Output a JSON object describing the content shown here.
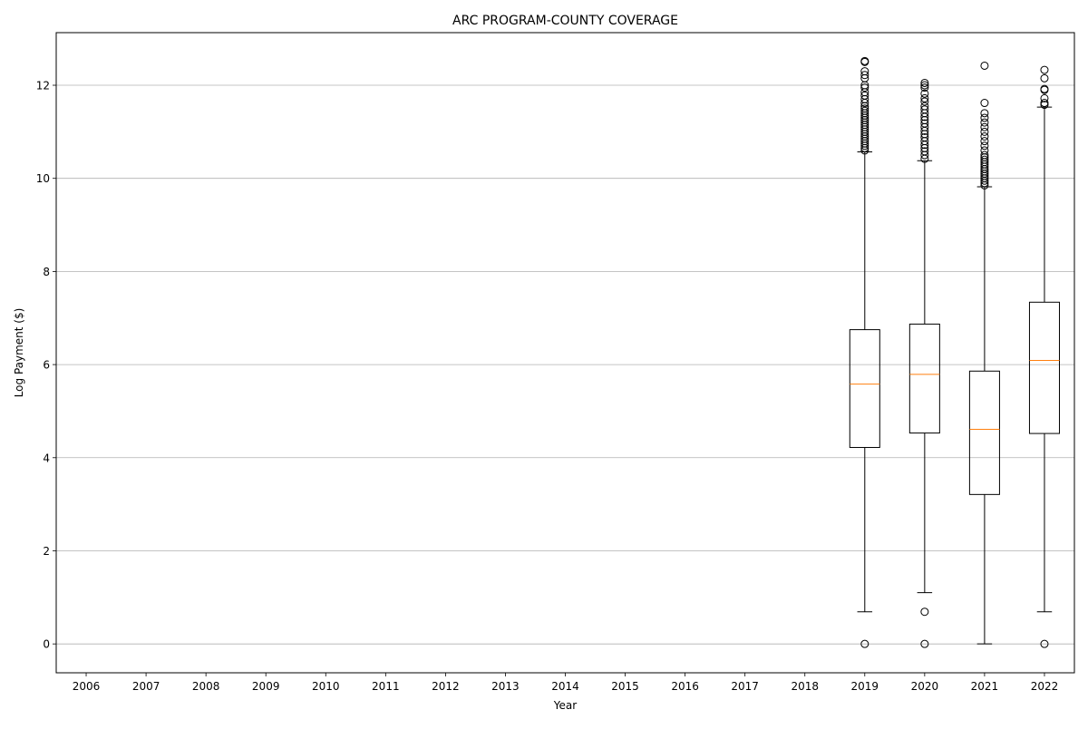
{
  "chart_data": {
    "type": "box",
    "title": "ARC PROGRAM-COUNTY COVERAGE",
    "xlabel": "Year",
    "ylabel": "Log Payment ($)",
    "categories": [
      "2006",
      "2007",
      "2008",
      "2009",
      "2010",
      "2011",
      "2012",
      "2013",
      "2014",
      "2015",
      "2016",
      "2017",
      "2018",
      "2019",
      "2020",
      "2021",
      "2022"
    ],
    "ylim": [
      -0.62,
      13.13
    ],
    "yticks": [
      0,
      2,
      4,
      6,
      8,
      10,
      12
    ],
    "grid": "horizontal",
    "legend": "none",
    "colors": {
      "box": "#000000",
      "median": "#ff7f0e",
      "grid": "#b0b0b0"
    },
    "boxes": [
      {
        "category": "2019",
        "whisker_low": 0.69,
        "q1": 4.22,
        "median": 5.58,
        "q3": 6.75,
        "whisker_high": 10.57,
        "outliers": [
          0.0,
          10.6,
          10.65,
          10.7,
          10.75,
          10.8,
          10.85,
          10.9,
          10.95,
          11.0,
          11.05,
          11.1,
          11.15,
          11.2,
          11.25,
          11.3,
          11.35,
          11.4,
          11.45,
          11.5,
          11.55,
          11.62,
          11.7,
          11.78,
          11.85,
          11.95,
          12.0,
          12.15,
          12.22,
          12.3,
          12.5,
          12.52
        ]
      },
      {
        "category": "2020",
        "whisker_low": 1.1,
        "q1": 4.53,
        "median": 5.79,
        "q3": 6.87,
        "whisker_high": 10.38,
        "outliers": [
          0.0,
          0.69,
          10.42,
          10.5,
          10.58,
          10.65,
          10.72,
          10.8,
          10.88,
          10.95,
          11.02,
          11.1,
          11.18,
          11.25,
          11.32,
          11.4,
          11.48,
          11.55,
          11.65,
          11.72,
          11.82,
          11.95,
          12.0,
          12.05
        ]
      },
      {
        "category": "2021",
        "whisker_low": 0.0,
        "q1": 3.21,
        "median": 4.61,
        "q3": 5.86,
        "whisker_high": 9.82,
        "outliers": [
          9.85,
          9.9,
          9.95,
          10.0,
          10.05,
          10.1,
          10.15,
          10.2,
          10.25,
          10.3,
          10.35,
          10.4,
          10.45,
          10.5,
          10.6,
          10.7,
          10.8,
          10.9,
          11.0,
          11.1,
          11.2,
          11.3,
          11.4,
          11.62,
          12.42
        ]
      },
      {
        "category": "2022",
        "whisker_low": 0.69,
        "q1": 4.52,
        "median": 6.09,
        "q3": 7.34,
        "whisker_high": 11.53,
        "outliers": [
          0.0,
          11.58,
          11.62,
          11.72,
          11.9,
          11.92,
          12.15,
          12.33
        ]
      }
    ]
  }
}
